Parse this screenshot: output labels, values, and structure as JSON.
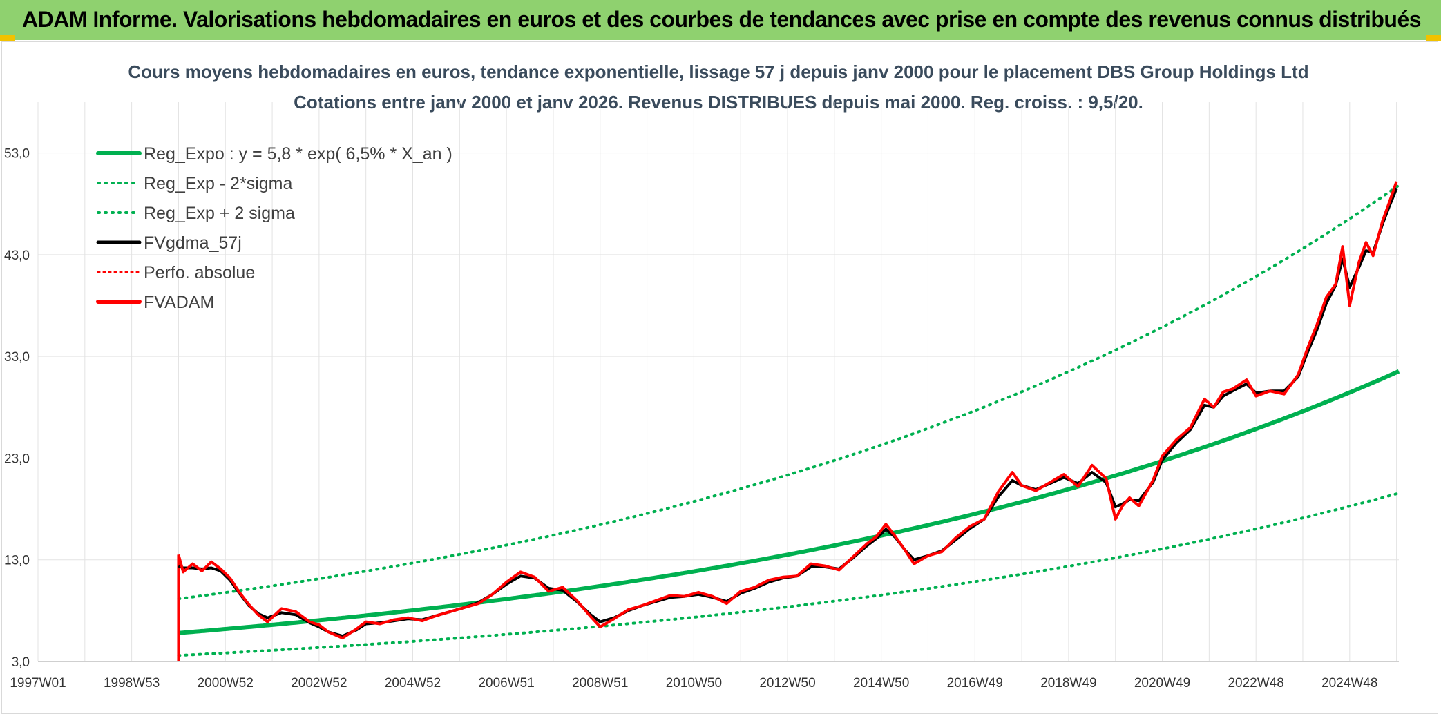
{
  "header": {
    "banner": "ADAM Informe. Valorisations hebdomadaires en euros et des courbes de tendances avec prise en compte des revenus connus distribués"
  },
  "colors": {
    "reg": "#00b050",
    "fv": "#000000",
    "adam": "#ff0000",
    "grid": "#e3e3e3",
    "banner": "#8fd16f"
  },
  "chart_data": {
    "type": "line",
    "title": "Cours moyens hebdomadaires en euros, tendance exponentielle, lissage 57 j depuis janv 2000 pour le placement DBS Group Holdings Ltd",
    "subtitle": "Cotations entre janv 2000 et janv 2026. Revenus DISTRIBUES depuis mai 2000. Reg. croiss. : 9,5/20.",
    "xlabel": "",
    "ylabel": "",
    "ylim": [
      3,
      58
    ],
    "yticks": [
      3,
      13,
      23,
      33,
      43,
      53
    ],
    "ytick_labels": [
      "3,0",
      "13,0",
      "23,0",
      "33,0",
      "43,0",
      "53,0"
    ],
    "xlim": [
      1997.0,
      2026.05
    ],
    "xticks": [
      1997.0,
      1999.0,
      2001.0,
      2003.0,
      2005.0,
      2007.0,
      2009.0,
      2011.0,
      2013.0,
      2015.0,
      2017.0,
      2019.0,
      2021.0,
      2023.0,
      2025.0
    ],
    "xtick_labels": [
      "1997W01",
      "1998W53",
      "2000W52",
      "2002W52",
      "2004W52",
      "2006W51",
      "2008W51",
      "2010W50",
      "2012W50",
      "2014W50",
      "2016W49",
      "2018W49",
      "2020W49",
      "2022W48",
      "2024W48"
    ],
    "legend": [
      "Reg_Expo : y = 5,8 * exp( 6,5% *  X_an )",
      "Reg_Exp - 2*sigma",
      "Reg_Exp + 2 sigma",
      "FVgdma_57j",
      "Perfo. absolue",
      "FVADAM"
    ],
    "legend_position": "top-left",
    "regression": {
      "a": 5.8,
      "rate": 0.065,
      "x0": 2000.0,
      "x1": 2026.05,
      "lower_factor": 0.62,
      "upper_factor": 1.58
    },
    "x": [
      2000.0,
      2000.1,
      2000.3,
      2000.5,
      2000.7,
      2000.9,
      2001.1,
      2001.3,
      2001.5,
      2001.7,
      2001.9,
      2002.2,
      2002.5,
      2002.8,
      2003.0,
      2003.2,
      2003.5,
      2003.8,
      2004.0,
      2004.3,
      2004.6,
      2004.9,
      2005.2,
      2005.5,
      2005.8,
      2006.1,
      2006.4,
      2006.7,
      2007.0,
      2007.3,
      2007.6,
      2007.9,
      2008.2,
      2008.5,
      2008.8,
      2009.0,
      2009.3,
      2009.6,
      2009.9,
      2010.2,
      2010.5,
      2010.8,
      2011.1,
      2011.4,
      2011.7,
      2012.0,
      2012.3,
      2012.6,
      2012.9,
      2013.2,
      2013.5,
      2013.8,
      2014.1,
      2014.4,
      2014.7,
      2014.9,
      2015.1,
      2015.3,
      2015.5,
      2015.7,
      2016.0,
      2016.3,
      2016.6,
      2016.9,
      2017.2,
      2017.5,
      2017.8,
      2018.0,
      2018.3,
      2018.6,
      2018.9,
      2019.2,
      2019.5,
      2019.8,
      2020.0,
      2020.15,
      2020.3,
      2020.5,
      2020.8,
      2021.0,
      2021.3,
      2021.6,
      2021.9,
      2022.1,
      2022.3,
      2022.5,
      2022.8,
      2023.0,
      2023.3,
      2023.6,
      2023.9,
      2024.1,
      2024.3,
      2024.5,
      2024.7,
      2024.85,
      2025.0,
      2025.2,
      2025.35,
      2025.5,
      2025.7,
      2025.85,
      2026.0
    ],
    "series": [
      {
        "name": "FVADAM",
        "values": [
          13.5,
          11.8,
          12.6,
          11.9,
          12.8,
          12.1,
          11.2,
          9.8,
          8.6,
          7.6,
          6.9,
          8.2,
          7.9,
          6.9,
          6.6,
          5.9,
          5.3,
          6.2,
          6.9,
          6.7,
          7.1,
          7.3,
          7.0,
          7.5,
          7.9,
          8.3,
          8.7,
          9.6,
          10.8,
          11.8,
          11.3,
          9.9,
          10.3,
          9.0,
          7.4,
          6.4,
          7.2,
          8.1,
          8.5,
          9.0,
          9.5,
          9.4,
          9.8,
          9.4,
          8.7,
          9.9,
          10.3,
          11.0,
          11.3,
          11.4,
          12.6,
          12.4,
          12.0,
          13.3,
          14.6,
          15.3,
          16.5,
          15.3,
          14.0,
          12.6,
          13.4,
          13.8,
          15.2,
          16.3,
          17.0,
          19.7,
          21.6,
          20.3,
          19.8,
          20.6,
          21.4,
          20.2,
          22.3,
          21.0,
          17.0,
          18.3,
          19.1,
          18.3,
          20.8,
          23.2,
          24.8,
          26.0,
          28.8,
          28.0,
          29.5,
          29.8,
          30.7,
          29.1,
          29.6,
          29.3,
          31.2,
          33.8,
          36.1,
          38.8,
          40.1,
          43.8,
          38.0,
          42.3,
          44.2,
          42.9,
          46.3,
          48.2,
          50.2
        ]
      },
      {
        "name": "FVgdma_57j",
        "values": [
          12.4,
          12.2,
          12.2,
          12.1,
          12.2,
          11.9,
          11.0,
          9.7,
          8.5,
          7.7,
          7.3,
          7.8,
          7.6,
          6.8,
          6.4,
          5.9,
          5.5,
          6.1,
          6.7,
          6.8,
          7.0,
          7.2,
          7.1,
          7.5,
          7.9,
          8.3,
          8.8,
          9.6,
          10.6,
          11.4,
          11.2,
          10.2,
          10.0,
          8.9,
          7.6,
          6.9,
          7.3,
          8.0,
          8.5,
          8.9,
          9.3,
          9.4,
          9.6,
          9.3,
          8.9,
          9.7,
          10.2,
          10.8,
          11.2,
          11.4,
          12.3,
          12.3,
          12.1,
          13.2,
          14.4,
          15.1,
          16.0,
          15.2,
          14.0,
          13.0,
          13.4,
          13.9,
          15.0,
          16.1,
          17.0,
          19.2,
          20.8,
          20.3,
          19.9,
          20.5,
          21.1,
          20.5,
          21.6,
          20.6,
          18.2,
          18.5,
          18.9,
          18.8,
          20.6,
          22.8,
          24.5,
          25.8,
          28.2,
          28.0,
          29.1,
          29.6,
          30.3,
          29.4,
          29.6,
          29.6,
          31.0,
          33.4,
          35.6,
          38.2,
          40.0,
          42.6,
          39.8,
          41.8,
          43.4,
          43.2,
          46.0,
          47.8,
          49.5
        ]
      }
    ]
  }
}
